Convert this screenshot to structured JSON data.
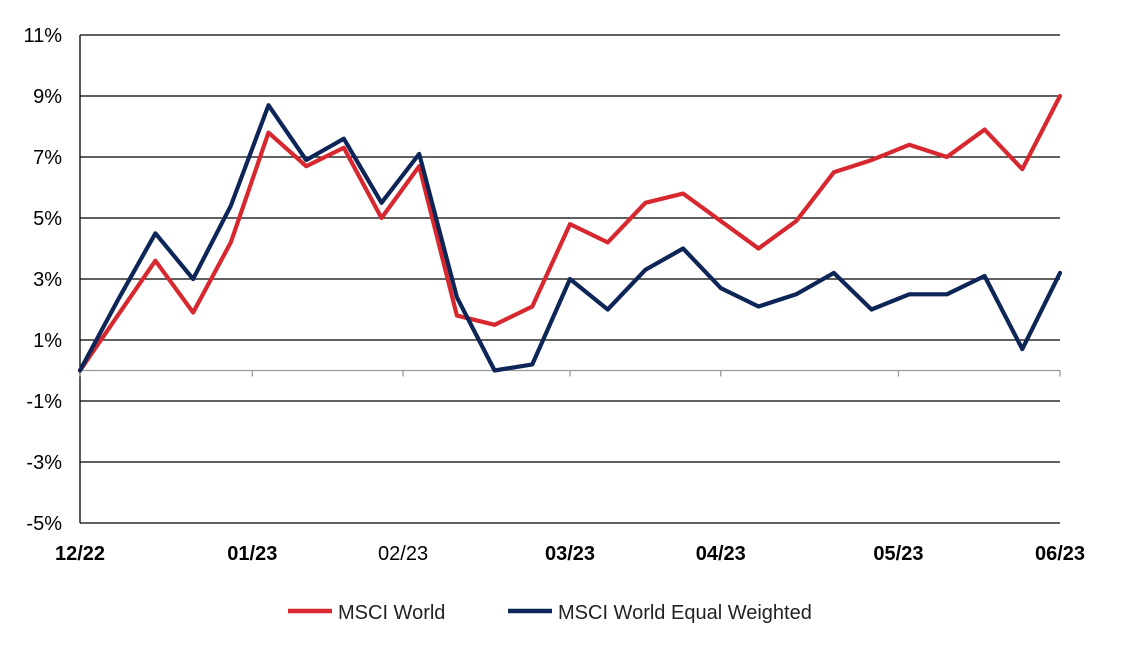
{
  "chart_data": {
    "type": "line",
    "title": "",
    "xlabel": "",
    "ylabel": "",
    "ylim": [
      -5,
      11
    ],
    "y_ticks": [
      "11%",
      "9%",
      "7%",
      "5%",
      "3%",
      "1%",
      "-1%",
      "-3%",
      "-5%"
    ],
    "y_tick_values": [
      11,
      9,
      7,
      5,
      3,
      1,
      -1,
      -3,
      -5
    ],
    "x_ticks": [
      "12/22",
      "01/23",
      "02/23",
      "03/23",
      "04/23",
      "05/23",
      "06/23"
    ],
    "x_tick_dates": [
      "2022-12-30",
      "2023-01-31",
      "2023-02-28",
      "2023-03-31",
      "2023-04-28",
      "2023-05-31",
      "2023-06-30"
    ],
    "grid": true,
    "legend_position": "bottom",
    "dates": [
      "2022-12-30",
      "2023-01-06",
      "2023-01-13",
      "2023-01-20",
      "2023-01-27",
      "2023-02-03",
      "2023-02-10",
      "2023-02-17",
      "2023-02-24",
      "2023-03-03",
      "2023-03-10",
      "2023-03-17",
      "2023-03-24",
      "2023-03-31",
      "2023-04-07",
      "2023-04-14",
      "2023-04-21",
      "2023-04-28",
      "2023-05-05",
      "2023-05-12",
      "2023-05-19",
      "2023-05-26",
      "2023-06-02",
      "2023-06-09",
      "2023-06-16",
      "2023-06-23",
      "2023-06-30"
    ],
    "series": [
      {
        "name": "MSCI World",
        "color": "#d7282f",
        "values": [
          0.0,
          1.8,
          3.6,
          1.9,
          4.2,
          7.8,
          6.7,
          7.3,
          5.0,
          6.7,
          1.8,
          1.5,
          2.1,
          4.8,
          4.2,
          5.5,
          5.8,
          4.9,
          4.0,
          4.9,
          6.5,
          6.9,
          7.4,
          7.0,
          7.9,
          6.6,
          9.0
        ]
      },
      {
        "name": "MSCI World Equal Weighted",
        "color": "#0d2557",
        "values": [
          0.0,
          2.3,
          4.5,
          3.0,
          5.4,
          8.7,
          6.9,
          7.6,
          5.5,
          7.1,
          2.4,
          0.0,
          0.2,
          3.0,
          2.0,
          3.3,
          4.0,
          2.7,
          2.1,
          2.5,
          3.2,
          2.0,
          2.5,
          2.5,
          3.1,
          0.7,
          3.2
        ]
      }
    ]
  }
}
